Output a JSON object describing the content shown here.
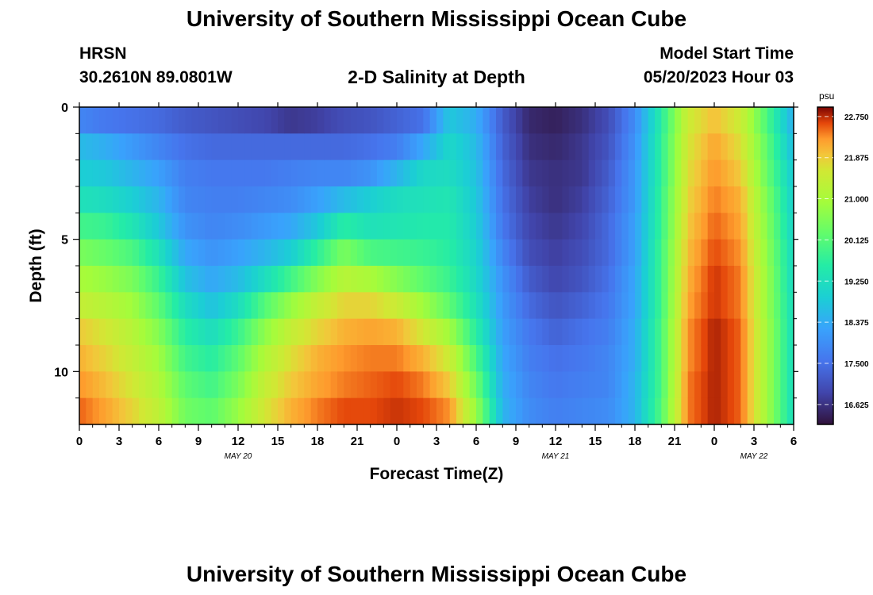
{
  "page": {
    "title": "University of Southern Mississippi Ocean Cube",
    "footer_title": "University of Southern Mississippi Ocean Cube",
    "station": "HRSN",
    "coordinates": "30.2610N  89.0801W",
    "subtitle": "2-D Salinity at Depth",
    "model_start_label": "Model Start Time",
    "model_start_value": "05/20/2023 Hour 03"
  },
  "chart_data": {
    "type": "heatmap",
    "title": "2-D Salinity at Depth",
    "xlabel": "Forecast Time(Z)",
    "ylabel": "Depth (ft)",
    "xlim": [
      0,
      54
    ],
    "ylim": [
      0,
      12
    ],
    "x_ticks": [
      0,
      3,
      6,
      9,
      12,
      15,
      18,
      21,
      24,
      27,
      30,
      33,
      36,
      39,
      42,
      45,
      48,
      51,
      54
    ],
    "x_tick_labels": [
      "0",
      "3",
      "6",
      "9",
      "12",
      "15",
      "18",
      "21",
      "0",
      "3",
      "6",
      "9",
      "12",
      "15",
      "18",
      "21",
      "0",
      "3",
      "6"
    ],
    "y_ticks": [
      0,
      5,
      10
    ],
    "y_tick_labels": [
      "0",
      "5",
      "10"
    ],
    "date_labels": [
      {
        "x": 12,
        "text": "MAY 20"
      },
      {
        "x": 36,
        "text": "MAY 21"
      },
      {
        "x": 51,
        "text": "MAY 22"
      }
    ],
    "depth_layers": 12,
    "colorbar": {
      "unit": "psu",
      "min": 16.2,
      "max": 22.95,
      "ticks": [
        22.75,
        21.875,
        21.0,
        20.125,
        19.25,
        18.375,
        17.5,
        16.625
      ],
      "tick_labels": [
        "22.750",
        "21.875",
        "21.000",
        "20.125",
        "19.250",
        "18.375",
        "17.500",
        "16.625"
      ]
    },
    "profiles": [
      {
        "t": 0,
        "values": [
          17.8,
          18.6,
          18.9,
          19.3,
          19.9,
          20.5,
          21.0,
          21.4,
          21.9,
          22.1,
          22.3,
          22.5
        ]
      },
      {
        "t": 2,
        "values": [
          17.6,
          18.4,
          18.8,
          19.2,
          19.8,
          20.3,
          20.8,
          21.2,
          21.6,
          21.8,
          22.0,
          22.2
        ]
      },
      {
        "t": 4,
        "values": [
          17.5,
          18.1,
          18.5,
          18.9,
          19.4,
          20.0,
          20.5,
          20.9,
          21.2,
          21.4,
          21.6,
          21.8
        ]
      },
      {
        "t": 6,
        "values": [
          17.4,
          17.8,
          18.2,
          18.5,
          18.8,
          19.3,
          19.8,
          20.2,
          20.6,
          20.9,
          21.1,
          21.3
        ]
      },
      {
        "t": 8,
        "values": [
          17.2,
          17.5,
          17.7,
          17.8,
          18.0,
          18.3,
          18.7,
          19.2,
          19.6,
          19.9,
          20.2,
          20.4
        ]
      },
      {
        "t": 10,
        "values": [
          17.1,
          17.4,
          17.6,
          17.7,
          17.8,
          18.0,
          18.3,
          18.7,
          19.2,
          19.6,
          19.9,
          20.2
        ]
      },
      {
        "t": 12,
        "values": [
          17.0,
          17.4,
          17.6,
          17.7,
          17.9,
          18.2,
          18.6,
          19.2,
          19.8,
          20.2,
          20.5,
          20.8
        ]
      },
      {
        "t": 14,
        "values": [
          16.9,
          17.4,
          17.6,
          17.8,
          18.1,
          18.5,
          19.2,
          20.1,
          20.7,
          21.1,
          21.4,
          21.6
        ]
      },
      {
        "t": 16,
        "values": [
          16.7,
          17.4,
          17.7,
          17.9,
          18.3,
          18.9,
          19.9,
          20.8,
          21.4,
          21.7,
          21.9,
          22.1
        ]
      },
      {
        "t": 18,
        "values": [
          16.8,
          17.4,
          17.8,
          18.2,
          18.8,
          19.7,
          20.6,
          21.4,
          21.8,
          22.1,
          22.2,
          22.4
        ]
      },
      {
        "t": 20,
        "values": [
          17.0,
          17.4,
          17.8,
          18.6,
          19.6,
          20.5,
          21.2,
          21.8,
          22.1,
          22.3,
          22.4,
          22.6
        ]
      },
      {
        "t": 22,
        "values": [
          17.1,
          17.5,
          18.0,
          18.9,
          19.3,
          20.0,
          21.0,
          21.8,
          22.2,
          22.4,
          22.5,
          22.6
        ]
      },
      {
        "t": 24,
        "values": [
          17.3,
          17.7,
          18.5,
          19.2,
          19.4,
          19.9,
          20.6,
          21.5,
          22.1,
          22.4,
          22.6,
          22.7
        ]
      },
      {
        "t": 26,
        "values": [
          17.5,
          18.3,
          19.1,
          19.3,
          19.5,
          19.8,
          20.2,
          20.9,
          21.6,
          22.1,
          22.4,
          22.6
        ]
      },
      {
        "t": 28,
        "values": [
          18.8,
          19.1,
          19.2,
          19.4,
          19.5,
          19.6,
          19.8,
          20.2,
          20.9,
          21.5,
          21.9,
          22.3
        ]
      },
      {
        "t": 30,
        "values": [
          18.4,
          18.6,
          18.7,
          18.8,
          18.9,
          19.0,
          19.1,
          19.3,
          19.6,
          20.0,
          20.4,
          20.8
        ]
      },
      {
        "t": 32,
        "values": [
          17.2,
          17.3,
          17.4,
          17.5,
          17.6,
          17.8,
          18.0,
          18.1,
          18.2,
          18.3,
          18.4,
          18.5
        ]
      },
      {
        "t": 34,
        "values": [
          16.5,
          16.6,
          16.7,
          16.8,
          16.9,
          17.0,
          17.2,
          17.4,
          17.6,
          17.7,
          17.8,
          17.9
        ]
      },
      {
        "t": 36,
        "values": [
          16.4,
          16.5,
          16.6,
          16.6,
          16.7,
          16.8,
          16.9,
          17.1,
          17.3,
          17.5,
          17.6,
          17.7
        ]
      },
      {
        "t": 38,
        "values": [
          16.6,
          16.7,
          16.7,
          16.8,
          16.9,
          17.0,
          17.1,
          17.3,
          17.5,
          17.6,
          17.7,
          17.8
        ]
      },
      {
        "t": 40,
        "values": [
          17.0,
          17.1,
          17.2,
          17.3,
          17.4,
          17.4,
          17.5,
          17.6,
          17.7,
          17.8,
          17.8,
          17.9
        ]
      },
      {
        "t": 42,
        "values": [
          17.9,
          18.0,
          18.1,
          18.1,
          18.2,
          18.2,
          18.3,
          18.3,
          18.4,
          18.4,
          18.5,
          18.5
        ]
      },
      {
        "t": 44,
        "values": [
          19.6,
          19.7,
          19.7,
          19.8,
          19.8,
          19.9,
          19.9,
          19.9,
          20.0,
          20.0,
          20.0,
          20.1
        ]
      },
      {
        "t": 46,
        "values": [
          21.5,
          21.6,
          21.7,
          21.8,
          21.9,
          22.0,
          22.1,
          22.2,
          22.3,
          22.3,
          22.4,
          22.4
        ]
      },
      {
        "t": 48,
        "values": [
          22.0,
          22.2,
          22.3,
          22.4,
          22.5,
          22.6,
          22.7,
          22.7,
          22.8,
          22.8,
          22.8,
          22.8
        ]
      },
      {
        "t": 50,
        "values": [
          21.5,
          21.7,
          21.9,
          22.1,
          22.2,
          22.3,
          22.4,
          22.4,
          22.5,
          22.5,
          22.5,
          22.5
        ]
      },
      {
        "t": 52,
        "values": [
          20.0,
          20.2,
          20.3,
          20.5,
          20.6,
          20.7,
          20.8,
          20.8,
          20.9,
          20.9,
          20.9,
          20.9
        ]
      },
      {
        "t": 54,
        "values": [
          18.4,
          18.6,
          18.8,
          18.9,
          19.0,
          19.1,
          19.1,
          19.2,
          19.2,
          19.2,
          19.2,
          19.2
        ]
      }
    ]
  }
}
